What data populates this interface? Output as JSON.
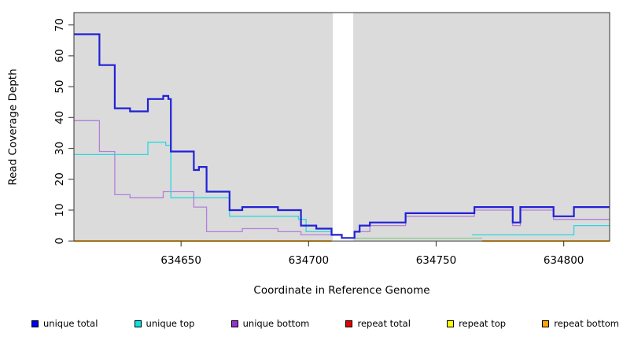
{
  "figure": {
    "page_background": "#FFFFFF"
  },
  "chart_data": {
    "type": "line",
    "step_style": "step-after",
    "title": "",
    "xlabel": "Coordinate in Reference Genome",
    "ylabel": "Read Coverage Depth",
    "xlim": [
      634608,
      634818
    ],
    "ylim": [
      0,
      74
    ],
    "xticks": [
      634650,
      634700,
      634750,
      634800
    ],
    "yticks": [
      0,
      10,
      20,
      30,
      40,
      50,
      60,
      70
    ],
    "plot_background": "#DBDBDB",
    "axis_color": "#333333",
    "tick_color": "#4D4D4D",
    "grid": "off",
    "legend_position": "bottom",
    "gap_band": {
      "x_start": 634709.5,
      "x_end": 634717.5,
      "color": "#FFFFFF",
      "note": "white vertical band interrupting all series except unique total"
    },
    "series": [
      {
        "name": "repeat total",
        "color": "#E60000",
        "line_width": 1.6,
        "hidden_under": "repeat bottom",
        "segments": [
          [
            [
              634608,
              0
            ],
            [
              634709,
              0
            ]
          ],
          [
            [
              634768,
              0
            ],
            [
              634818,
              0
            ]
          ]
        ]
      },
      {
        "name": "repeat top",
        "color": "#FFFF00",
        "line_width": 1.6,
        "hidden_under": "repeat bottom",
        "segments": [
          [
            [
              634608,
              0
            ],
            [
              634709,
              0
            ]
          ],
          [
            [
              634768,
              0
            ],
            [
              634818,
              0
            ]
          ]
        ]
      },
      {
        "name": "repeat bottom",
        "color": "#FFA500",
        "line_width": 2.2,
        "segments": [
          [
            [
              634608,
              0
            ],
            [
              634709,
              0
            ]
          ],
          [
            [
              634768,
              0
            ],
            [
              634818,
              0
            ]
          ]
        ]
      },
      {
        "name": "unlabeled green segment",
        "color": "#8FCC8F",
        "line_width": 1.3,
        "in_legend": false,
        "segments": [
          [
            [
              634718,
              0.9
            ],
            [
              634768,
              0.9
            ]
          ]
        ]
      },
      {
        "name": "unique bottom",
        "color": "#B27FDC",
        "line_width": 1.3,
        "segments": [
          [
            [
              634608,
              39
            ],
            [
              634618,
              29
            ],
            [
              634624,
              15
            ],
            [
              634630,
              14
            ],
            [
              634643,
              16
            ],
            [
              634655,
              11
            ],
            [
              634660,
              3
            ],
            [
              634674,
              4
            ],
            [
              634688,
              3
            ],
            [
              634697,
              2
            ],
            [
              634709,
              2
            ]
          ],
          [
            [
              634718,
              3
            ],
            [
              634724,
              5
            ],
            [
              634738,
              8
            ],
            [
              634765,
              10
            ],
            [
              634780,
              5
            ],
            [
              634783,
              10
            ],
            [
              634796,
              7
            ],
            [
              634818,
              7
            ]
          ]
        ]
      },
      {
        "name": "unique top",
        "color": "#2BD8E0",
        "line_width": 1.3,
        "segments": [
          [
            [
              634608,
              28
            ],
            [
              634637,
              32
            ],
            [
              634644,
              31
            ],
            [
              634646,
              14
            ],
            [
              634657,
              14
            ],
            [
              634669,
              8
            ],
            [
              634696,
              7
            ],
            [
              634699,
              3
            ],
            [
              634709,
              3
            ]
          ],
          [
            [
              634764,
              2
            ],
            [
              634804,
              5
            ],
            [
              634818,
              5
            ]
          ]
        ]
      },
      {
        "name": "unique total",
        "color": "#2121D7",
        "line_width": 2.2,
        "segments": [
          [
            [
              634608,
              67
            ],
            [
              634618,
              57
            ],
            [
              634624,
              43
            ],
            [
              634630,
              42
            ],
            [
              634637,
              46
            ],
            [
              634643,
              47
            ],
            [
              634645,
              46
            ],
            [
              634646,
              29
            ],
            [
              634655,
              23
            ],
            [
              634657,
              24
            ],
            [
              634660,
              16
            ],
            [
              634669,
              10
            ],
            [
              634674,
              11
            ],
            [
              634688,
              10
            ],
            [
              634697,
              5
            ],
            [
              634703,
              4
            ],
            [
              634709,
              2
            ],
            [
              634713,
              1
            ],
            [
              634718,
              3
            ],
            [
              634720,
              5
            ],
            [
              634724,
              6
            ],
            [
              634738,
              9
            ],
            [
              634765,
              11
            ],
            [
              634780,
              6
            ],
            [
              634783,
              11
            ],
            [
              634796,
              8
            ],
            [
              634804,
              11
            ],
            [
              634818,
              11
            ]
          ]
        ]
      }
    ],
    "legend": [
      {
        "label": "unique total",
        "color": "#0000EE"
      },
      {
        "label": "unique top",
        "color": "#00E5E5"
      },
      {
        "label": "unique bottom",
        "color": "#9A32CD"
      },
      {
        "label": "repeat total",
        "color": "#E60000"
      },
      {
        "label": "repeat top",
        "color": "#FFFF00"
      },
      {
        "label": "repeat bottom",
        "color": "#FFA500"
      }
    ]
  }
}
